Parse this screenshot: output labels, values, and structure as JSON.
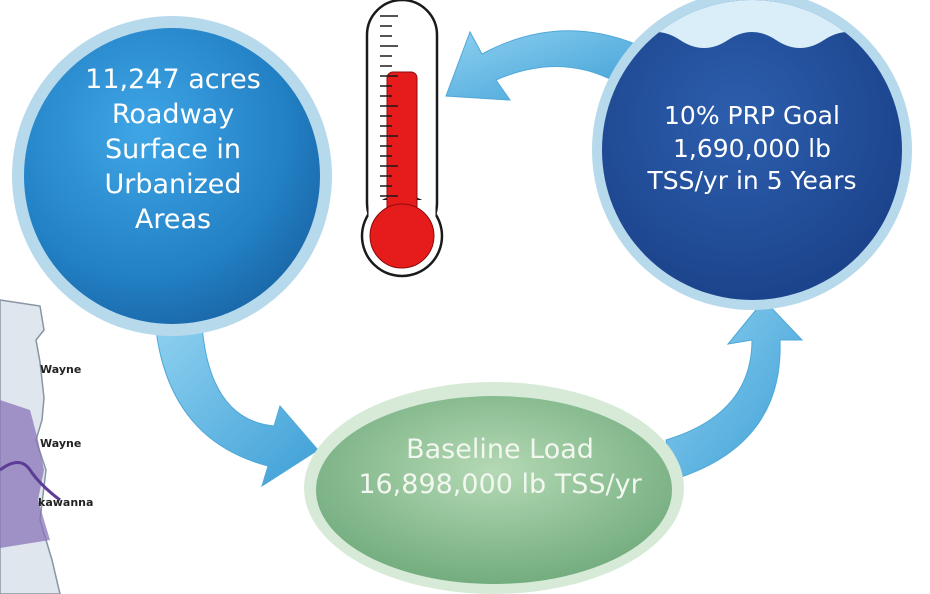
{
  "circles": {
    "roadway": {
      "lines": [
        "11,247 acres",
        "Roadway",
        "Surface in",
        "Urbanized",
        "Areas"
      ]
    },
    "goal": {
      "lines": [
        "10% PRP Goal",
        "1,690,000 lb",
        "TSS/yr in 5 Years"
      ]
    },
    "baseline": {
      "lines": [
        "Baseline Load",
        "16,898,000 lb TSS/yr"
      ]
    }
  },
  "map": {
    "county_labels": [
      "Wayne",
      "Wayne",
      "kawanna"
    ]
  },
  "colors": {
    "left_circle": "#2a82c6",
    "right_circle": "#1f4d9c",
    "bottom_ellipse": "#8dbf94",
    "arrow": "#58b3e0",
    "thermometer_fill": "#e61b1b"
  }
}
